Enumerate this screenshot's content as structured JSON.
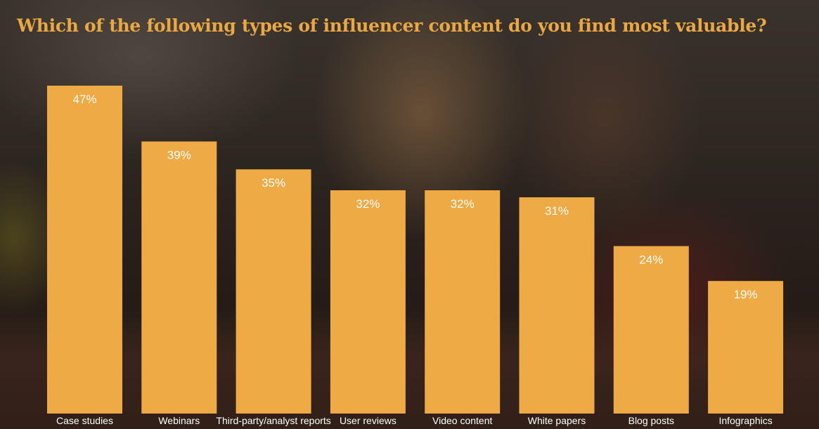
{
  "chart_data": {
    "type": "bar",
    "title": "Which of the following types of influencer content do you find most valuable?",
    "categories": [
      "Case studies",
      "Webinars",
      "Third-party/analyst reports",
      "User reviews",
      "Video content",
      "White papers",
      "Blog posts",
      "Infographics"
    ],
    "values": [
      47,
      39,
      35,
      32,
      32,
      31,
      24,
      19
    ],
    "value_labels": [
      "47%",
      "39%",
      "35%",
      "32%",
      "32%",
      "31%",
      "24%",
      "19%"
    ],
    "unit": "%",
    "ylim": [
      0,
      47
    ],
    "grid": false,
    "legend": "none",
    "bar_color": "#eeaa45",
    "title_color": "#eaa845",
    "label_color": "#ffffff"
  }
}
